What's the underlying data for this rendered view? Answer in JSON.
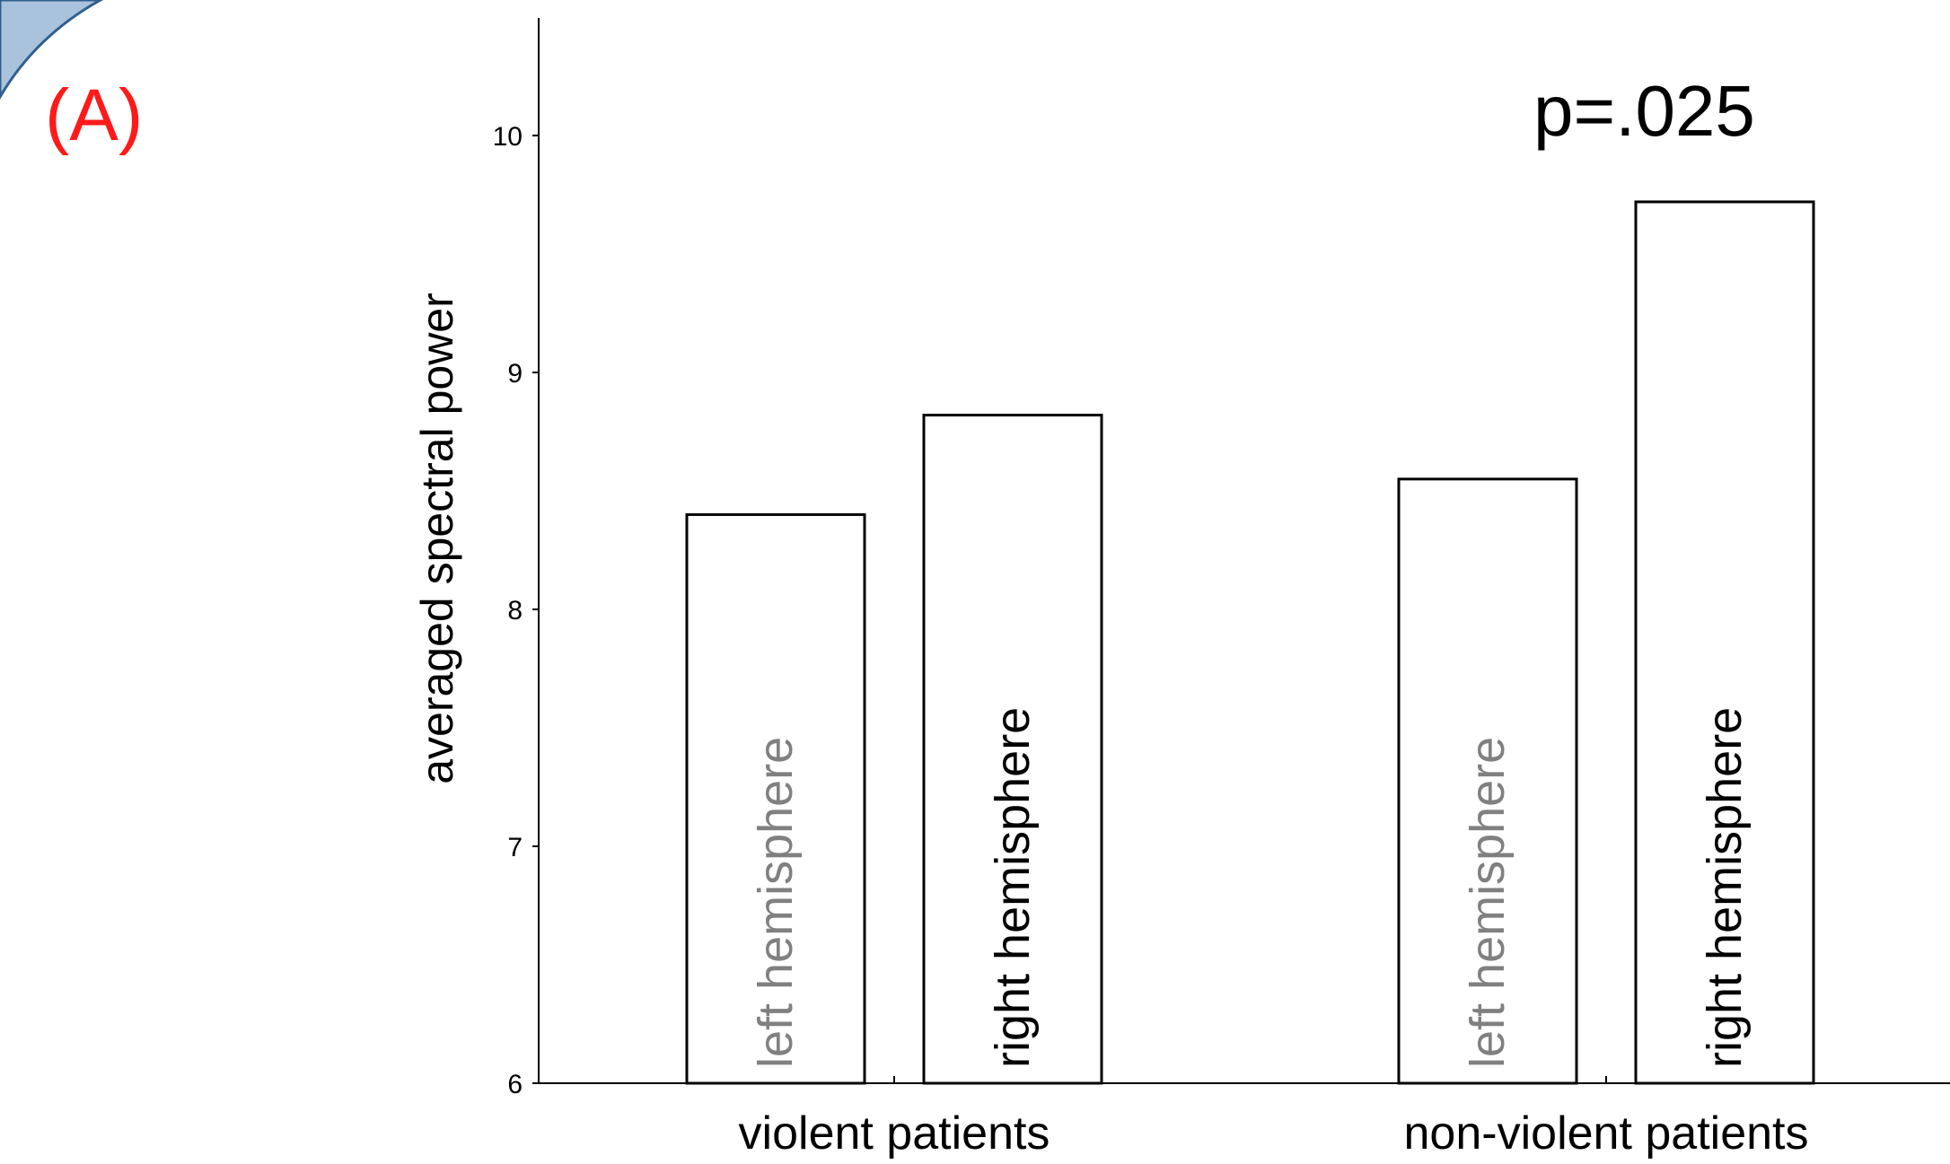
{
  "panel_label": "(A)",
  "annotation": "p=.025",
  "colors": {
    "panel_label": "#ff1a1a",
    "corner_swoosh_fill": "#a9c3dd",
    "corner_swoosh_edge": "#2f5f8f",
    "bar_fill": "#ffffff",
    "bar_edge": "#000000",
    "left_bar_text": "#808080",
    "right_bar_text": "#000000"
  },
  "decorations": {
    "corner_swoosh": "blue-slide-corner-swoosh"
  },
  "chart_data": {
    "type": "bar",
    "title": "",
    "xlabel": "",
    "ylabel": "averaged spectral power",
    "ylim": [
      6,
      10.5
    ],
    "yticks": [
      6,
      7,
      8,
      9,
      10
    ],
    "categories": [
      "violent patients",
      "non-violent patients"
    ],
    "grid": false,
    "legend": "none",
    "series": [
      {
        "name": "left hemisphere",
        "values": [
          8.4,
          8.55
        ]
      },
      {
        "name": "right hemisphere",
        "values": [
          8.82,
          9.72
        ]
      }
    ]
  }
}
